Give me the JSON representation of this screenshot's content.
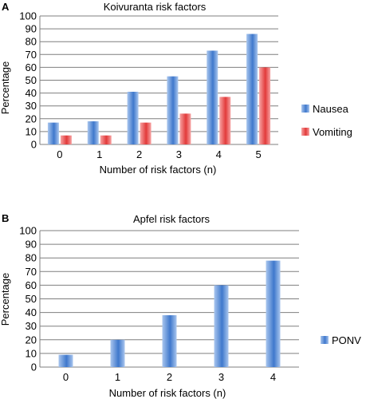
{
  "colors": {
    "series_blue_light": "#a9c6ee",
    "series_blue_dark": "#3f78cc",
    "series_red_light": "#f7a4a4",
    "series_red_dark": "#e23a3a",
    "grid": "#7f7f7f"
  },
  "chart_data": [
    {
      "panel_letter": "A",
      "type": "bar",
      "title": "Koivuranta risk factors",
      "xlabel": "Number of risk factors (n)",
      "ylabel": "Percentage",
      "categories": [
        "0",
        "1",
        "2",
        "3",
        "4",
        "5"
      ],
      "ylim": [
        0,
        100
      ],
      "yticks": [
        "0",
        "10",
        "20",
        "30",
        "40",
        "50",
        "60",
        "70",
        "80",
        "90",
        "100"
      ],
      "grid": true,
      "legend_position": "right",
      "series": [
        {
          "name": "Nausea",
          "values": [
            17,
            18,
            41,
            53,
            73,
            86
          ]
        },
        {
          "name": "Vomiting",
          "values": [
            7,
            7,
            17,
            24,
            37,
            60
          ]
        }
      ]
    },
    {
      "panel_letter": "B",
      "type": "bar",
      "title": "Apfel risk factors",
      "xlabel": "Number of risk factors (n)",
      "ylabel": "Percentage",
      "categories": [
        "0",
        "1",
        "2",
        "3",
        "4"
      ],
      "ylim": [
        0,
        100
      ],
      "yticks": [
        "0",
        "10",
        "20",
        "30",
        "40",
        "50",
        "60",
        "70",
        "80",
        "90",
        "100"
      ],
      "grid": true,
      "legend_position": "right",
      "series": [
        {
          "name": "PONV",
          "values": [
            9,
            20,
            38,
            60,
            78
          ]
        }
      ]
    }
  ]
}
